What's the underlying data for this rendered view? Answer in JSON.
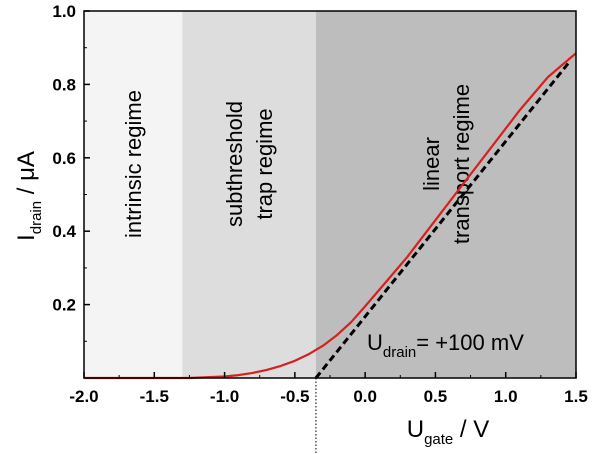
{
  "chart_data": {
    "type": "line",
    "title": "",
    "xlabel": {
      "main": "U",
      "sub": "gate",
      "unit": " / V"
    },
    "ylabel": {
      "main": "I",
      "sub": "drain",
      "unit": " / μA"
    },
    "xlim": [
      -2.0,
      1.5
    ],
    "ylim": [
      0,
      1.0
    ],
    "x_ticks": [
      "-2.0",
      "-1.5",
      "-1.0",
      "-0.5",
      "0.0",
      "0.5",
      "1.0",
      "1.5"
    ],
    "x_tick_values": [
      -2.0,
      -1.5,
      -1.0,
      -0.5,
      0.0,
      0.5,
      1.0,
      1.5
    ],
    "y_ticks": [
      "0.2",
      "0.4",
      "0.6",
      "0.8",
      "1.0"
    ],
    "y_tick_values": [
      0.2,
      0.4,
      0.6,
      0.8,
      1.0
    ],
    "grid": false,
    "regions": [
      {
        "from": -2.0,
        "to": -1.3,
        "color": "#f4f4f4",
        "lines": [
          "intrinsic regime"
        ]
      },
      {
        "from": -1.3,
        "to": -0.35,
        "color": "#dddddd",
        "lines": [
          "subthreshold",
          "trap regime"
        ]
      },
      {
        "from": -0.35,
        "to": 1.5,
        "color": "#bdbdbd",
        "lines": [
          "linear",
          "transport regime"
        ]
      }
    ],
    "series": [
      {
        "style": "solid",
        "color": "#d62020",
        "x": [
          -2.0,
          -1.5,
          -1.25,
          -1.0,
          -0.9,
          -0.8,
          -0.7,
          -0.6,
          -0.5,
          -0.4,
          -0.3,
          -0.2,
          -0.1,
          0.0,
          0.1,
          0.2,
          0.3,
          0.5,
          0.7,
          0.9,
          1.1,
          1.3,
          1.5
        ],
        "y": [
          0.0,
          0.0,
          0.0,
          0.004,
          0.008,
          0.014,
          0.022,
          0.033,
          0.047,
          0.065,
          0.088,
          0.117,
          0.152,
          0.195,
          0.24,
          0.285,
          0.33,
          0.43,
          0.53,
          0.63,
          0.73,
          0.82,
          0.885
        ]
      },
      {
        "style": "dashed",
        "color": "#000000",
        "x": [
          -0.35,
          1.45
        ],
        "y": [
          0.0,
          0.86
        ]
      }
    ],
    "threshold_marker": {
      "x": -0.35
    },
    "annotation": {
      "main": "U",
      "sub": "drain",
      "rest": "= +100 mV"
    }
  }
}
